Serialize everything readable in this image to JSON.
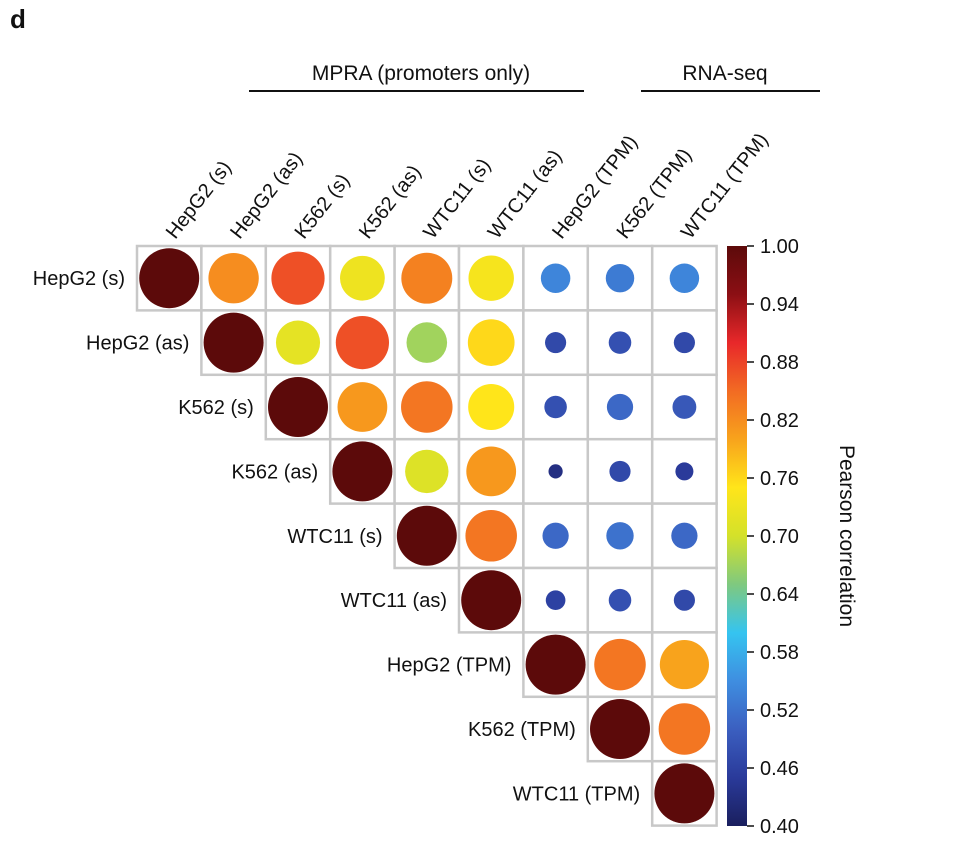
{
  "panel_label": "d",
  "groups": [
    {
      "label": "MPRA (promoters only)"
    },
    {
      "label": "RNA-seq"
    }
  ],
  "chart_data": {
    "type": "heatmap",
    "subtype": "correlogram-upper-triangle",
    "labels": [
      "HepG2 (s)",
      "HepG2 (as)",
      "K562 (s)",
      "K562 (as)",
      "WTC11 (s)",
      "WTC11 (as)",
      "HepG2 (TPM)",
      "K562 (TPM)",
      "WTC11 (TPM)"
    ],
    "matrix": [
      [
        1.0,
        0.82,
        0.87,
        0.73,
        0.83,
        0.74,
        0.54,
        0.53,
        0.54
      ],
      [
        null,
        1.0,
        0.72,
        0.87,
        0.67,
        0.76,
        0.47,
        0.48,
        0.47
      ],
      [
        null,
        null,
        1.0,
        0.81,
        0.84,
        0.75,
        0.48,
        0.51,
        0.49
      ],
      [
        null,
        null,
        null,
        1.0,
        0.71,
        0.81,
        0.43,
        0.47,
        0.45
      ],
      [
        null,
        null,
        null,
        null,
        1.0,
        0.84,
        0.51,
        0.52,
        0.51
      ],
      [
        null,
        null,
        null,
        null,
        null,
        1.0,
        0.46,
        0.48,
        0.47
      ],
      [
        null,
        null,
        null,
        null,
        null,
        null,
        1.0,
        0.84,
        0.8
      ],
      [
        null,
        null,
        null,
        null,
        null,
        null,
        null,
        1.0,
        0.84
      ],
      [
        null,
        null,
        null,
        null,
        null,
        null,
        null,
        null,
        1.0
      ]
    ],
    "colorbar": {
      "label": "Pearson correlation",
      "min": 0.4,
      "max": 1.0,
      "ticks": [
        "1.00",
        "0.94",
        "0.88",
        "0.82",
        "0.76",
        "0.70",
        "0.64",
        "0.58",
        "0.52",
        "0.46",
        "0.40"
      ],
      "colors": [
        "#1a1f5e",
        "#2a3a9a",
        "#3b5fc0",
        "#3f8ee0",
        "#35c4f0",
        "#7fc97f",
        "#d4e12a",
        "#ffe51a",
        "#f8a31c",
        "#f26b23",
        "#e8282a",
        "#8c0f14",
        "#5c0a0a"
      ]
    },
    "marker_size": "circle area scales with correlation"
  }
}
